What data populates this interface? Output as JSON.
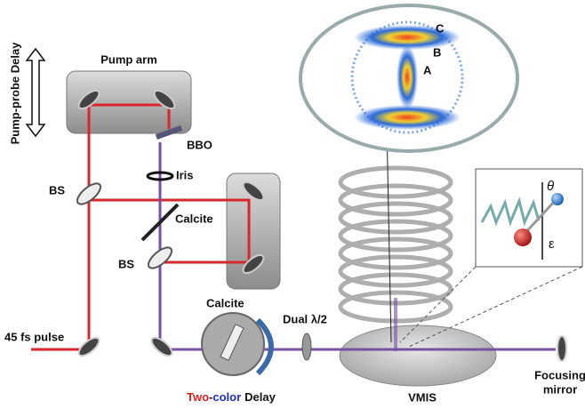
{
  "labels": {
    "pump_probe_delay": "Pump-probe Delay",
    "pump_arm": "Pump arm",
    "bbo": "BBO",
    "iris": "Iris",
    "bs_top": "BS",
    "calcite_top": "Calcite",
    "bs_bottom": "BS",
    "pulse": "45 fs pulse",
    "calcite_bottom": "Calcite",
    "dual_half_wave": "Dual λ/2",
    "two": "Two",
    "hyphen": "-",
    "color": "color",
    "delay": "Delay",
    "vmis": "VMIS",
    "focusing": "Focusing",
    "mirror": "mirror",
    "ring_c": "C",
    "ring_b": "B",
    "ring_a": "A",
    "theta": "θ",
    "epsilon": "ε"
  }
}
